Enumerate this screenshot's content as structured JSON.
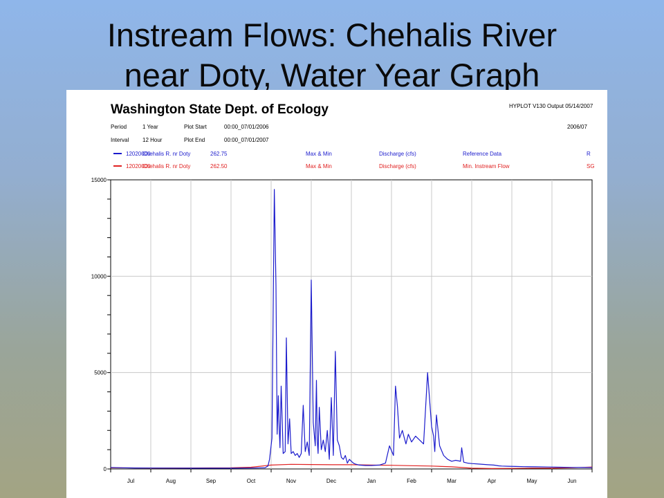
{
  "slide": {
    "title_line1": "Instream Flows: Chehalis River",
    "title_line2": "near Doty, Water Year Graph"
  },
  "report": {
    "agency": "Washington State Dept. of Ecology",
    "program_stamp": "HYPLOT V130 Output 05/14/2007",
    "year_code": "2006/07",
    "period_label": "Period",
    "period_value": "1 Year",
    "plot_start_label": "Plot Start",
    "plot_start_value": "00:00_07/01/2006",
    "interval_label": "Interval",
    "interval_value": "12 Hour",
    "plot_end_label": "Plot End",
    "plot_end_value": "00:00_07/01/2007"
  },
  "legend": [
    {
      "color": "#1a1acc",
      "site": "12020000",
      "station": "Chehalis R. nr Doty",
      "value": "262.75",
      "stat": "Max & Min",
      "param": "Discharge (cfs)",
      "type": "Reference Data",
      "code": "R"
    },
    {
      "color": "#e02020",
      "site": "12020000",
      "station": "Chehalis R. nr Doty",
      "value": "262.50",
      "stat": "Max & Min",
      "param": "Discharge (cfs)",
      "type": "Min. Instream Flow",
      "code": "SG"
    }
  ],
  "chart_data": {
    "type": "line",
    "title": "Washington State Dept. of Ecology",
    "xlabel": "",
    "ylabel": "",
    "ylim": [
      0,
      15000
    ],
    "yticks": [
      "15000",
      "10000",
      "5000",
      "0"
    ],
    "ytick_values": [
      15000,
      10000,
      5000,
      0
    ],
    "xlim": [
      0,
      12
    ],
    "categories": [
      "Jul",
      "Aug",
      "Sep",
      "Oct",
      "Nov",
      "Dec",
      "Jan",
      "Feb",
      "Mar",
      "Apr",
      "May",
      "Jun"
    ],
    "grid": true,
    "series": [
      {
        "name": "Reference Data",
        "color": "#1a1acc",
        "x": [
          0,
          0.3,
          0.6,
          1,
          2,
          3,
          3.5,
          3.85,
          3.92,
          3.96,
          4.02,
          4.08,
          4.12,
          4.15,
          4.18,
          4.2,
          4.22,
          4.25,
          4.3,
          4.35,
          4.38,
          4.42,
          4.46,
          4.5,
          4.55,
          4.6,
          4.65,
          4.7,
          4.75,
          4.8,
          4.85,
          4.9,
          4.95,
          5.0,
          5.05,
          5.1,
          5.13,
          5.15,
          5.17,
          5.2,
          5.25,
          5.3,
          5.35,
          5.4,
          5.45,
          5.5,
          5.55,
          5.6,
          5.65,
          5.7,
          5.75,
          5.8,
          5.85,
          5.9,
          5.95,
          6.0,
          6.05,
          6.1,
          6.2,
          6.35,
          6.5,
          6.7,
          6.85,
          6.95,
          7.05,
          7.1,
          7.15,
          7.2,
          7.27,
          7.32,
          7.36,
          7.42,
          7.5,
          7.6,
          7.7,
          7.8,
          7.9,
          8.0,
          8.05,
          8.08,
          8.12,
          8.2,
          8.3,
          8.4,
          8.5,
          8.6,
          8.72,
          8.75,
          8.8,
          8.9,
          9.0,
          9.2,
          9.4,
          9.55,
          9.62,
          9.67,
          9.75,
          9.9,
          10.1,
          10.3,
          10.6,
          10.9,
          11.2,
          11.5,
          11.8,
          12.0
        ],
        "values": [
          80,
          60,
          50,
          45,
          40,
          40,
          45,
          60,
          150,
          500,
          1600,
          14500,
          9500,
          1800,
          3800,
          2200,
          1100,
          4300,
          800,
          900,
          6800,
          1300,
          2600,
          800,
          900,
          700,
          800,
          600,
          800,
          3300,
          900,
          1400,
          700,
          9800,
          2400,
          1200,
          4600,
          1500,
          800,
          3200,
          1000,
          1500,
          900,
          2000,
          500,
          3700,
          700,
          6100,
          1500,
          1200,
          600,
          500,
          700,
          300,
          500,
          400,
          300,
          250,
          200,
          180,
          180,
          200,
          300,
          1200,
          700,
          4300,
          3200,
          1600,
          2000,
          1600,
          1300,
          1800,
          1400,
          1700,
          1500,
          1300,
          5000,
          2200,
          1700,
          900,
          2800,
          1200,
          700,
          500,
          400,
          450,
          400,
          1100,
          350,
          300,
          280,
          250,
          220,
          200,
          180,
          160,
          150,
          140,
          130,
          120,
          110,
          100,
          90,
          80,
          75,
          70
        ]
      },
      {
        "name": "Min. Instream Flow",
        "color": "#e02020",
        "x": [
          0,
          1,
          2,
          3,
          3.5,
          4.0,
          4.5,
          5.0,
          5.5,
          6.0,
          6.5,
          7.0,
          7.5,
          8.0,
          8.5,
          9.0,
          9.5,
          10.0,
          10.5,
          11.0,
          11.5,
          12.0
        ],
        "values": [
          60,
          50,
          50,
          60,
          90,
          200,
          240,
          230,
          220,
          220,
          200,
          190,
          170,
          150,
          110,
          40,
          20,
          30,
          40,
          40,
          60,
          100
        ]
      }
    ]
  }
}
